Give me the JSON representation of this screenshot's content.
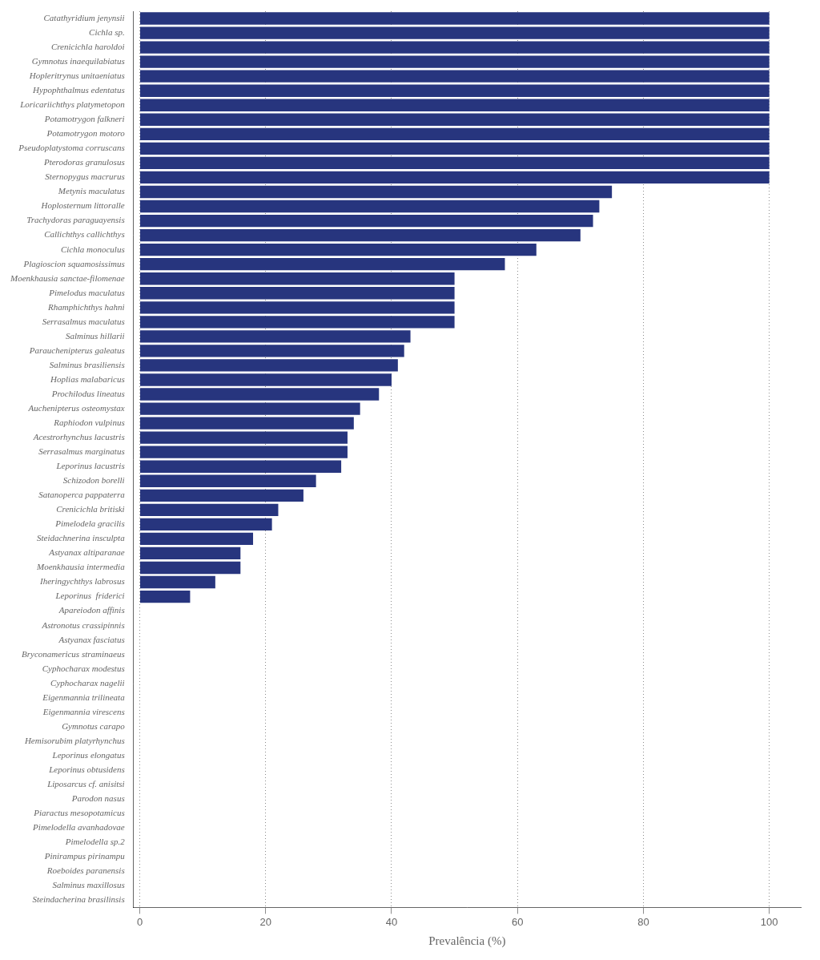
{
  "chart_data": {
    "type": "bar",
    "orientation": "horizontal",
    "categories": [
      "Catathyridium jenynsii",
      "Cichla sp.",
      "Crenicichla haroldoi",
      "Gymnotus inaequilabiatus",
      "Hopleritrynus unitaeniatus",
      "Hypophthalmus edentatus",
      "Loricariichthys platymetopon",
      "Potamotrygon falkneri",
      "Potamotrygon motoro",
      "Pseudoplatystoma corruscans",
      "Pterodoras granulosus",
      "Sternopygus macrurus",
      "Metynis maculatus",
      "Hoplosternum littoralle",
      "Trachydoras paraguayensis",
      "Callichthys callichthys",
      "Cichla monoculus",
      "Plagioscion squamosissimus",
      "Moenkhausia sanctae-filomenae",
      "Pimelodus maculatus",
      "Rhamphichthys hahni",
      "Serrasalmus maculatus",
      "Salminus hillarii",
      "Parauchenipterus galeatus",
      "Salminus brasiliensis",
      "Hoplias malabaricus",
      "Prochilodus lineatus",
      "Auchenipterus osteomystax",
      "Raphiodon vulpinus",
      "Acestrorhynchus lacustris",
      "Serrasalmus marginatus",
      "Leporinus lacustris",
      "Schizodon borelli",
      "Satanoperca pappaterra",
      "Crenicichla britiski",
      "Pimelodela gracilis",
      "Steidachnerina insculpta",
      "Astyanax altiparanae",
      "Moenkhausia intermedia",
      "Iheringychthys labrosus",
      "Leporinus  friderici",
      "Apareiodon affinis",
      "Astronotus crassipinnis",
      "Astyanax fasciatus",
      "Bryconamericus straminaeus",
      "Cyphocharax modestus",
      "Cyphocharax nagelii",
      "Eigenmannia trilineata",
      "Eigenmannia virescens",
      "Gymnotus carapo",
      "Hemisorubim platyrhynchus",
      "Leporinus elongatus",
      "Leporinus obtusidens",
      "Liposarcus cf. anisitsi",
      "Parodon nasus",
      "Piaractus mesopotamicus",
      "Pimelodella avanhadovae",
      "Pimelodella sp.2",
      "Pinirampus pirinampu",
      "Roeboides paranensis",
      "Salminus maxillosus",
      "Steindacherina brasilinsis"
    ],
    "values": [
      100,
      100,
      100,
      100,
      100,
      100,
      100,
      100,
      100,
      100,
      100,
      100,
      75,
      73,
      72,
      70,
      63,
      58,
      50,
      50,
      50,
      50,
      43,
      42,
      41,
      40,
      38,
      35,
      34,
      33,
      33,
      32,
      28,
      26,
      22,
      21,
      18,
      16,
      16,
      12,
      8,
      0,
      0,
      0,
      0,
      0,
      0,
      0,
      0,
      0,
      0,
      0,
      0,
      0,
      0,
      0,
      0,
      0,
      0,
      0,
      0,
      0
    ],
    "color": "#27357e",
    "xlabel": "Prevalência (%)",
    "xlim": [
      -1,
      105
    ],
    "xticks": [
      0,
      20,
      40,
      60,
      80,
      100
    ],
    "grid": true
  }
}
